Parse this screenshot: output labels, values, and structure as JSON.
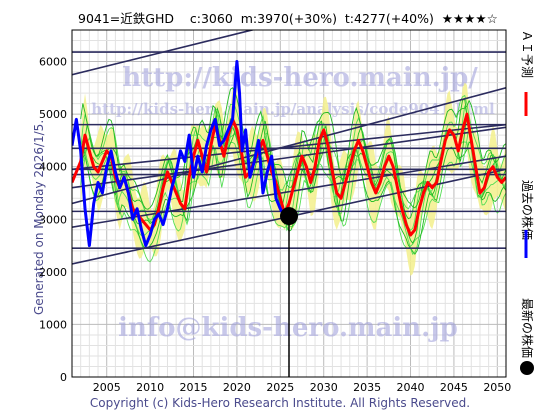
{
  "header": {
    "title": "9041=近鉄GHD    c:3060  m:3970(+30%)  t:4277(+40%)  ★★★★☆",
    "generated": "Generated on Monday 2026/1/5.",
    "copyright": "Copyright (c) Kids-Hero Research Institute. All Rights Reserved."
  },
  "watermarks": {
    "url_large": "http://kids-hero.main.jp/",
    "url_small": "http://kids-hero.main.jp/analysis/code9041.html",
    "email": "info@kids-hero.main.jp"
  },
  "legend": [
    {
      "label": "ＡＩ予測",
      "color": "#ff0000"
    },
    {
      "label": "過去の株価",
      "color": "#0000ff"
    },
    {
      "label": "最新の株価",
      "color": "#000000"
    }
  ],
  "chart_data": {
    "type": "line",
    "xlim": [
      2001,
      2051
    ],
    "ylim": [
      0,
      6600
    ],
    "x_ticks": [
      2005,
      2010,
      2015,
      2020,
      2025,
      2030,
      2035,
      2040,
      2045,
      2050
    ],
    "y_ticks": [
      0,
      1000,
      2000,
      3000,
      4000,
      5000,
      6000
    ],
    "grid": true,
    "latest_point": {
      "x": 2026.0,
      "y": 3060
    },
    "horizontal_levels": [
      6180,
      4800,
      4350,
      3950,
      3850,
      3150,
      2450
    ],
    "trend_lines": [
      {
        "from": [
          2001,
          5750
        ],
        "to": [
          2051,
          7800
        ]
      },
      {
        "from": [
          2001,
          3950
        ],
        "to": [
          2051,
          4800
        ]
      },
      {
        "from": [
          2001,
          3600
        ],
        "to": [
          2051,
          4750
        ]
      },
      {
        "from": [
          2001,
          3300
        ],
        "to": [
          2051,
          5500
        ]
      },
      {
        "from": [
          2001,
          2850
        ],
        "to": [
          2051,
          4200
        ]
      },
      {
        "from": [
          2001,
          2150
        ],
        "to": [
          2051,
          3950
        ]
      }
    ],
    "series": [
      {
        "name": "過去の株価",
        "color": "#0000ff",
        "x": [
          2001,
          2001.5,
          2002,
          2002.5,
          2003,
          2003.5,
          2004,
          2004.5,
          2005,
          2005.5,
          2006,
          2006.5,
          2007,
          2007.5,
          2008,
          2008.5,
          2009,
          2009.5,
          2010,
          2010.5,
          2011,
          2011.5,
          2012,
          2012.5,
          2013,
          2013.5,
          2014,
          2014.5,
          2015,
          2015.5,
          2016,
          2016.5,
          2017,
          2017.5,
          2018,
          2018.5,
          2019,
          2019.5,
          2020,
          2020.3,
          2020.6,
          2021,
          2021.5,
          2022,
          2022.5,
          2023,
          2023.5,
          2024,
          2024.5,
          2025,
          2025.5,
          2026
        ],
        "y": [
          4400,
          4900,
          4300,
          3200,
          2500,
          3300,
          3700,
          3500,
          4000,
          4300,
          3900,
          3600,
          3800,
          3500,
          3000,
          3200,
          2800,
          2500,
          2700,
          3000,
          3100,
          2900,
          3200,
          3600,
          3900,
          4300,
          4100,
          4600,
          3800,
          4200,
          3900,
          4400,
          4700,
          4900,
          4400,
          4500,
          4700,
          4900,
          6000,
          5400,
          4300,
          4700,
          3800,
          4100,
          4500,
          3500,
          3900,
          4200,
          3400,
          3200,
          3050,
          3060
        ]
      },
      {
        "name": "ＡＩ予測",
        "color": "#ff0000",
        "x": [
          2001,
          2001.5,
          2002,
          2002.5,
          2003,
          2003.5,
          2004,
          2004.5,
          2005,
          2005.5,
          2006,
          2006.5,
          2007,
          2007.5,
          2008,
          2008.5,
          2009,
          2009.5,
          2010,
          2010.5,
          2011,
          2011.5,
          2012,
          2012.5,
          2013,
          2013.5,
          2014,
          2014.5,
          2015,
          2015.5,
          2016,
          2016.5,
          2017,
          2017.5,
          2018,
          2018.5,
          2019,
          2019.5,
          2020,
          2020.5,
          2021,
          2021.5,
          2022,
          2022.5,
          2023,
          2023.5,
          2024,
          2024.5,
          2025,
          2025.5,
          2026,
          2026.5,
          2027,
          2027.5,
          2028,
          2028.5,
          2029,
          2029.5,
          2030,
          2030.5,
          2031,
          2031.5,
          2032,
          2032.5,
          2033,
          2033.5,
          2034,
          2034.5,
          2035,
          2035.5,
          2036,
          2036.5,
          2037,
          2037.5,
          2038,
          2038.5,
          2039,
          2039.5,
          2040,
          2040.5,
          2041,
          2041.5,
          2042,
          2042.5,
          2043,
          2043.5,
          2044,
          2044.5,
          2045,
          2045.5,
          2046,
          2046.5,
          2047,
          2047.5,
          2048,
          2048.5,
          2049,
          2049.5,
          2050,
          2050.5,
          2051
        ],
        "y": [
          3700,
          3900,
          4100,
          4600,
          4300,
          4000,
          3900,
          4100,
          4300,
          4200,
          3800,
          3600,
          3800,
          3500,
          3200,
          3100,
          3000,
          2900,
          2800,
          2900,
          3200,
          3600,
          3900,
          3700,
          3500,
          3300,
          3200,
          3800,
          4200,
          4500,
          4200,
          3900,
          4400,
          4800,
          4500,
          4200,
          4600,
          4900,
          4700,
          4300,
          3800,
          3900,
          4100,
          4300,
          4500,
          4200,
          3900,
          3700,
          3400,
          3100,
          3300,
          3600,
          3900,
          4200,
          4000,
          3700,
          4000,
          4500,
          4700,
          4400,
          3900,
          3500,
          3400,
          3700,
          4000,
          4300,
          4500,
          4300,
          4000,
          3700,
          3500,
          3700,
          4000,
          4200,
          4000,
          3600,
          3200,
          2900,
          2700,
          2800,
          3200,
          3500,
          3700,
          3600,
          3700,
          4100,
          4500,
          4700,
          4600,
          4300,
          4700,
          5000,
          4500,
          4000,
          3500,
          3600,
          3900,
          4000,
          3800,
          3700,
          3800
        ]
      }
    ]
  }
}
